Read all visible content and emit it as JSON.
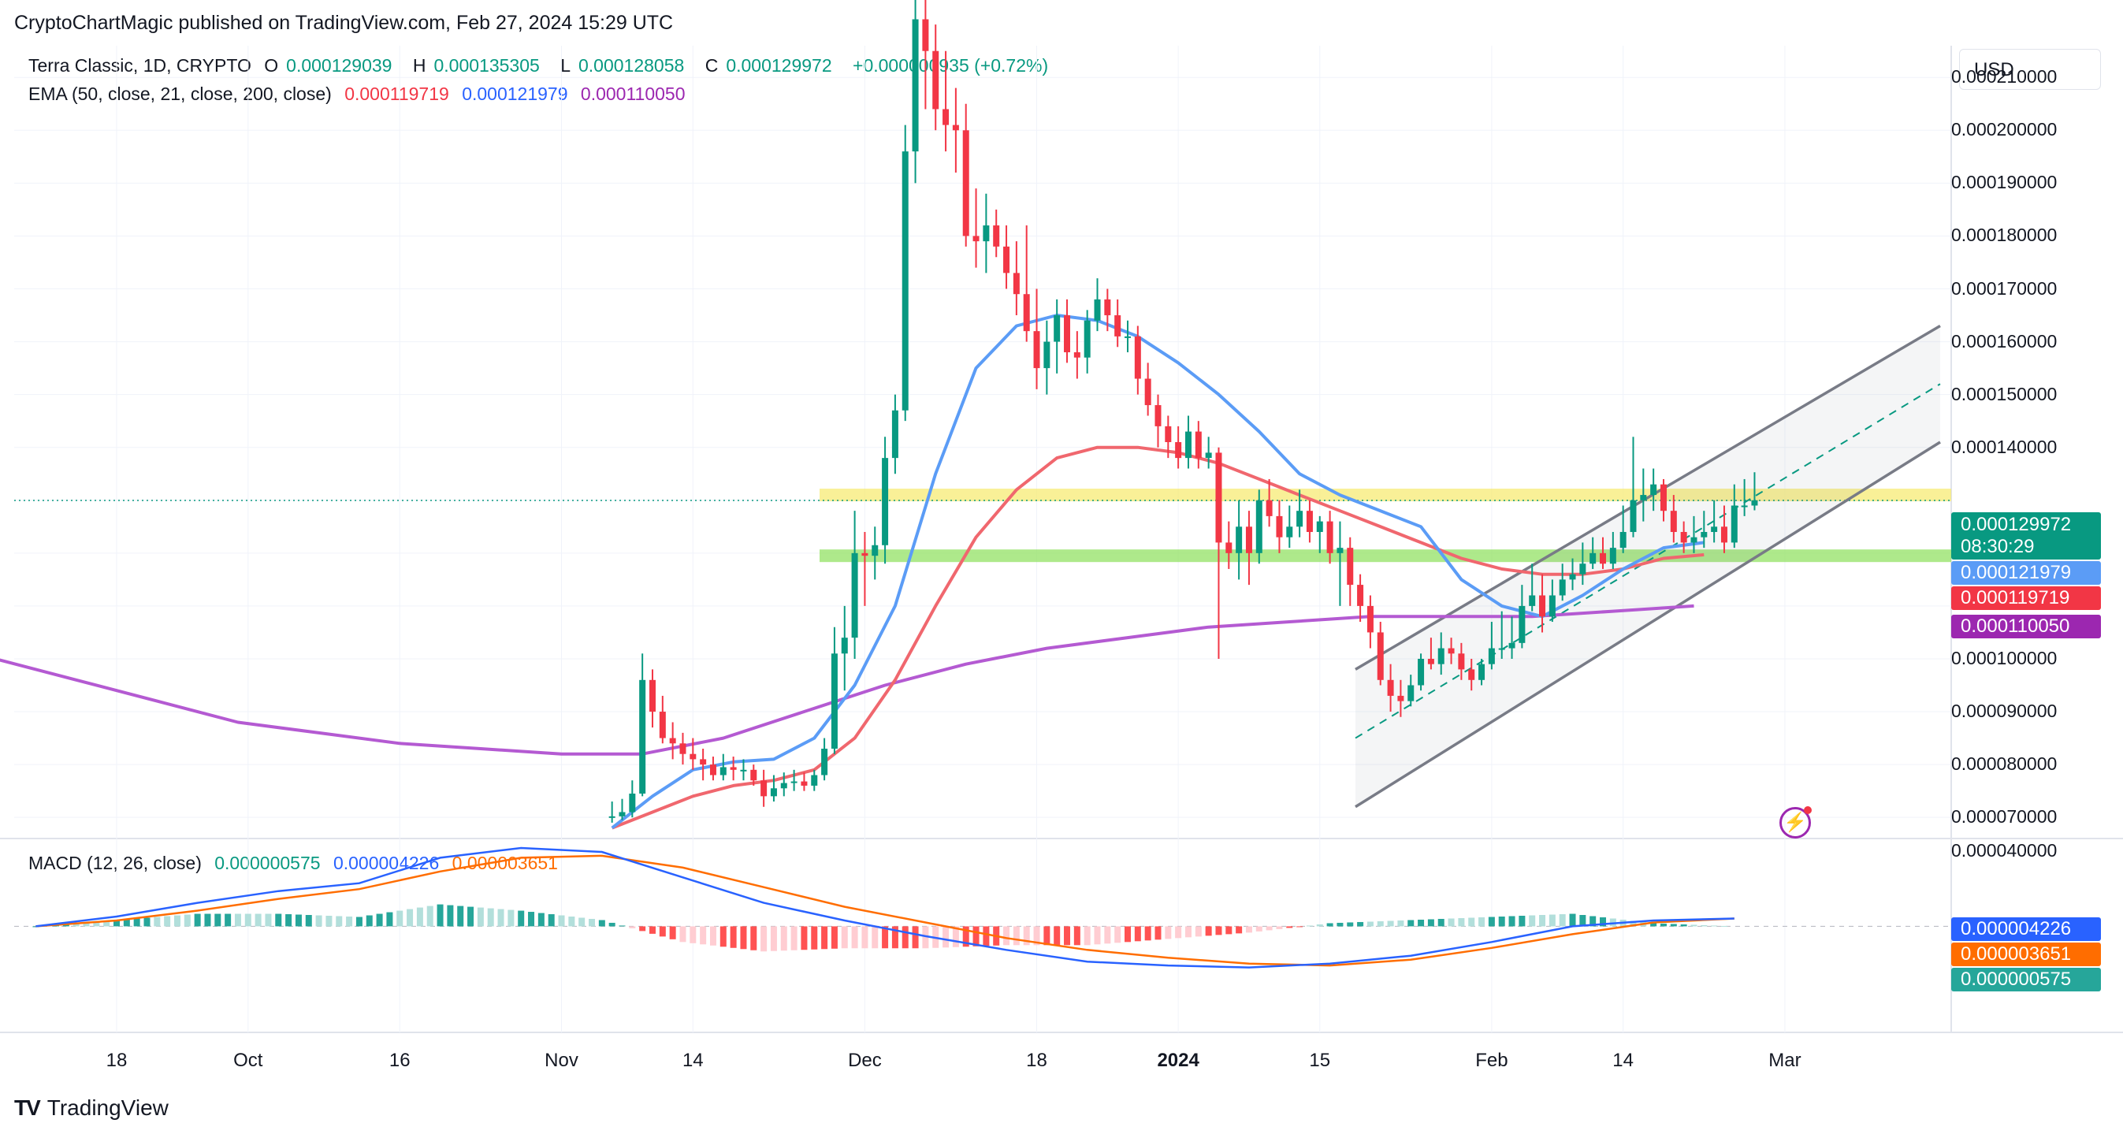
{
  "header": {
    "publisher": "CryptoChartMagic published on TradingView.com, Feb 27, 2024 15:29 UTC"
  },
  "legend": {
    "symbol": "Terra Classic, 1D, CRYPTO",
    "open_label": "O",
    "open": "0.000129039",
    "high_label": "H",
    "high": "0.000135305",
    "low_label": "L",
    "low": "0.000128058",
    "close_label": "C",
    "close": "0.000129972",
    "change": "+0.000000935 (+0.72%)",
    "ema_label": "EMA (50, close, 21, close, 200, close)",
    "ema50": "0.000119719",
    "ema21": "0.000121979",
    "ema200": "0.000110050",
    "macd_label": "MACD (12, 26, close)",
    "macd_hist": "0.000000575",
    "macd_line": "0.000004226",
    "macd_signal": "0.000003651"
  },
  "currency": "USD",
  "price_axis": [
    "0.000210000",
    "0.000200000",
    "0.000190000",
    "0.000180000",
    "0.000170000",
    "0.000160000",
    "0.000150000",
    "0.000140000",
    "0.000100000",
    "0.000090000",
    "0.000080000",
    "0.000070000"
  ],
  "macd_axis": [
    "0.000040000"
  ],
  "tags": {
    "last_price": "0.000129972",
    "countdown": "08:30:29",
    "ema21": "0.000121979",
    "ema50": "0.000119719",
    "ema200": "0.000110050",
    "macd_line": "0.000004226",
    "macd_signal": "0.000003651",
    "macd_hist": "0.000000575"
  },
  "colors": {
    "up": "#089981",
    "down": "#f23645",
    "ema21": "#5b9cf6",
    "ema50": "#f0676e",
    "ema200": "#b45ad2",
    "macd": "#2962ff",
    "signal": "#ff6d00"
  },
  "x_axis": [
    "18",
    "Oct",
    "16",
    "Nov",
    "14",
    "Dec",
    "18",
    "2024",
    "15",
    "Feb",
    "14",
    "Mar"
  ],
  "chart_data": {
    "type": "candlestick",
    "title": "Terra Classic, 1D, CRYPTO",
    "ylabel": "USD",
    "ylim": [
      6.6e-05,
      0.000216
    ],
    "x": [
      "2023-11-06",
      "2023-11-07",
      "2023-11-08",
      "2023-11-09",
      "2023-11-10",
      "2023-11-11",
      "2023-11-12",
      "2023-11-13",
      "2023-11-14",
      "2023-11-15",
      "2023-11-16",
      "2023-11-17",
      "2023-11-18",
      "2023-11-19",
      "2023-11-20",
      "2023-11-21",
      "2023-11-22",
      "2023-11-23",
      "2023-11-24",
      "2023-11-25",
      "2023-11-26",
      "2023-11-27",
      "2023-11-28",
      "2023-11-29",
      "2023-11-30",
      "2023-12-01",
      "2023-12-02",
      "2023-12-03",
      "2023-12-04",
      "2023-12-05",
      "2023-12-06",
      "2023-12-07",
      "2023-12-08",
      "2023-12-09",
      "2023-12-10",
      "2023-12-11",
      "2023-12-12",
      "2023-12-13",
      "2023-12-14",
      "2023-12-15",
      "2023-12-16",
      "2023-12-17",
      "2023-12-18",
      "2023-12-19",
      "2023-12-20",
      "2023-12-21",
      "2023-12-22",
      "2023-12-23",
      "2023-12-24",
      "2023-12-25",
      "2023-12-26",
      "2023-12-27",
      "2023-12-28",
      "2023-12-29",
      "2023-12-30",
      "2023-12-31",
      "2024-01-01",
      "2024-01-02",
      "2024-01-03",
      "2024-01-04",
      "2024-01-05",
      "2024-01-06",
      "2024-01-07",
      "2024-01-08",
      "2024-01-09",
      "2024-01-10",
      "2024-01-11",
      "2024-01-12",
      "2024-01-13",
      "2024-01-14",
      "2024-01-15",
      "2024-01-16",
      "2024-01-17",
      "2024-01-18",
      "2024-01-19",
      "2024-01-20",
      "2024-01-21",
      "2024-01-22",
      "2024-01-23",
      "2024-01-24",
      "2024-01-25",
      "2024-01-26",
      "2024-01-27",
      "2024-01-28",
      "2024-01-29",
      "2024-01-30",
      "2024-01-31",
      "2024-02-01",
      "2024-02-02",
      "2024-02-03",
      "2024-02-04",
      "2024-02-05",
      "2024-02-06",
      "2024-02-07",
      "2024-02-08",
      "2024-02-09",
      "2024-02-10",
      "2024-02-11",
      "2024-02-12",
      "2024-02-13",
      "2024-02-14",
      "2024-02-15",
      "2024-02-16",
      "2024-02-17",
      "2024-02-18",
      "2024-02-19",
      "2024-02-20",
      "2024-02-21",
      "2024-02-22",
      "2024-02-23",
      "2024-02-24",
      "2024-02-25",
      "2024-02-26",
      "2024-02-27"
    ],
    "open": [
      7e-05,
      7.02e-05,
      7.1e-05,
      7.45e-05,
      9.6e-05,
      9e-05,
      8.5e-05,
      8.4e-05,
      8.2e-05,
      8.1e-05,
      8e-05,
      7.8e-05,
      7.95e-05,
      7.9e-05,
      7.9e-05,
      7.7e-05,
      7.4e-05,
      7.55e-05,
      7.65e-05,
      7.68e-05,
      7.6e-05,
      7.8e-05,
      8.3e-05,
      0.000101,
      0.000104,
      0.00012,
      0.0001195,
      0.0001215,
      0.000138,
      0.000147,
      0.000196,
      0.000221,
      0.000215,
      0.000204,
      0.000201,
      0.0002,
      0.00018,
      0.000179,
      0.000182,
      0.000178,
      0.000173,
      0.000169,
      0.000162,
      0.000155,
      0.00016,
      0.000165,
      0.000158,
      0.000157,
      0.000164,
      0.000168,
      0.000165,
      0.000161,
      0.000161,
      0.000153,
      0.000148,
      0.000144,
      0.000141,
      0.000138,
      0.000143,
      0.000138,
      0.000139,
      0.000122,
      0.00012,
      0.000125,
      0.00012,
      0.00013,
      0.000127,
      0.000123,
      0.000125,
      0.000128,
      0.000124,
      0.000126,
      0.00012,
      0.000121,
      0.000114,
      0.00011,
      0.000105,
      9.6e-05,
      9.3e-05,
      9.2e-05,
      9.5e-05,
      0.0001,
      9.9e-05,
      0.000102,
      0.000101,
      9.8e-05,
      9.6e-05,
      9.9e-05,
      0.000102,
      0.000102,
      0.000103,
      0.00011,
      0.000112,
      0.000108,
      0.000112,
      0.000115,
      0.000116,
      0.000118,
      0.00012,
      0.000118,
      0.000121,
      0.000124,
      0.00013,
      0.000131,
      0.000133,
      0.000128,
      0.000124,
      0.000122,
      0.000123,
      0.000124,
      0.000125,
      0.000122,
      0.000129,
      0.000129
    ],
    "high": [
      7.3e-05,
      7.35e-05,
      7.7e-05,
      0.000101,
      9.8e-05,
      9.3e-05,
      8.8e-05,
      8.6e-05,
      8.5e-05,
      8.3e-05,
      8.15e-05,
      8.2e-05,
      8.15e-05,
      8.1e-05,
      8e-05,
      7.9e-05,
      7.8e-05,
      7.85e-05,
      7.9e-05,
      7.85e-05,
      7.9e-05,
      8.5e-05,
      0.000106,
      0.00011,
      0.000128,
      0.000124,
      0.000125,
      0.000142,
      0.00015,
      0.000201,
      0.000225,
      0.00023,
      0.00022,
      0.000215,
      0.000208,
      0.000205,
      0.000189,
      0.000188,
      0.000185,
      0.000182,
      0.000179,
      0.000182,
      0.00017,
      0.000164,
      0.000168,
      0.000168,
      0.000162,
      0.000166,
      0.000172,
      0.00017,
      0.000168,
      0.000164,
      0.000163,
      0.000156,
      0.00015,
      0.000146,
      0.000144,
      0.000146,
      0.000145,
      0.000142,
      0.00014,
      0.000126,
      0.00013,
      0.000128,
      0.000132,
      0.000134,
      0.00013,
      0.000129,
      0.000132,
      0.00013,
      0.000127,
      0.000128,
      0.000126,
      0.000123,
      0.000116,
      0.000112,
      0.000107,
      9.9e-05,
      9.6e-05,
      9.7e-05,
      0.000101,
      0.000104,
      0.000105,
      0.000104,
      0.000103,
      0.0001,
      0.0001,
      0.000107,
      0.000109,
      0.000108,
      0.000114,
      0.000118,
      0.000116,
      0.000115,
      0.000118,
      0.000119,
      0.000122,
      0.000123,
      0.000123,
      0.000124,
      0.000129,
      0.000142,
      0.000136,
      0.000136,
      0.000134,
      0.000131,
      0.000126,
      0.000127,
      0.000128,
      0.00013,
      0.000129,
      0.000133,
      0.000134,
      0.0001353
    ],
    "low": [
      6.9e-05,
      6.95e-05,
      7e-05,
      7.4e-05,
      8.7e-05,
      8.4e-05,
      8.1e-05,
      8e-05,
      7.9e-05,
      7.7e-05,
      7.7e-05,
      7.7e-05,
      7.7e-05,
      7.7e-05,
      7.6e-05,
      7.2e-05,
      7.3e-05,
      7.4e-05,
      7.5e-05,
      7.5e-05,
      7.5e-05,
      7.7e-05,
      8.2e-05,
      9.4e-05,
      0.0001,
      0.00011,
      0.000115,
      0.000118,
      0.000135,
      0.000145,
      0.00019,
      0.000204,
      0.0002,
      0.000196,
      0.000192,
      0.000178,
      0.000174,
      0.000173,
      0.000176,
      0.00017,
      0.000165,
      0.00016,
      0.000151,
      0.00015,
      0.000154,
      0.000156,
      0.000153,
      0.000154,
      0.000162,
      0.000162,
      0.000159,
      0.000158,
      0.00015,
      0.000146,
      0.00014,
      0.000138,
      0.000136,
      0.000136,
      0.000136,
      0.000136,
      0.0001,
      0.000117,
      0.000115,
      0.000114,
      0.000118,
      0.000125,
      0.00012,
      0.000121,
      0.000123,
      0.000122,
      0.00012,
      0.000118,
      0.00011,
      0.00011,
      0.000107,
      0.000102,
      9.5e-05,
      9e-05,
      8.9e-05,
      9.1e-05,
      9.4e-05,
      9.8e-05,
      9.7e-05,
      9.9e-05,
      9.6e-05,
      9.4e-05,
      9.5e-05,
      9.8e-05,
      0.0001,
      0.0001,
      0.000102,
      0.000109,
      0.000105,
      0.000107,
      0.000111,
      0.000113,
      0.000114,
      0.000117,
      0.000117,
      0.000117,
      0.00012,
      0.000123,
      0.000126,
      0.000128,
      0.000126,
      0.000122,
      0.00012,
      0.00012,
      0.000121,
      0.000122,
      0.00012,
      0.000121,
      0.000127,
      0.0001281
    ],
    "close": [
      7.02e-05,
      7.1e-05,
      7.45e-05,
      9.6e-05,
      9e-05,
      8.5e-05,
      8.4e-05,
      8.2e-05,
      8.1e-05,
      8e-05,
      7.8e-05,
      7.95e-05,
      7.9e-05,
      7.9e-05,
      7.7e-05,
      7.4e-05,
      7.55e-05,
      7.65e-05,
      7.68e-05,
      7.6e-05,
      7.8e-05,
      8.3e-05,
      0.000101,
      0.000104,
      0.00012,
      0.0001195,
      0.0001215,
      0.000138,
      0.000147,
      0.000196,
      0.000221,
      0.000215,
      0.000204,
      0.000201,
      0.0002,
      0.00018,
      0.000179,
      0.000182,
      0.000178,
      0.000173,
      0.000169,
      0.000162,
      0.000155,
      0.00016,
      0.000165,
      0.000158,
      0.000157,
      0.000164,
      0.000168,
      0.000165,
      0.000161,
      0.000161,
      0.000153,
      0.000148,
      0.000144,
      0.000141,
      0.000138,
      0.000143,
      0.000138,
      0.000139,
      0.000122,
      0.00012,
      0.000125,
      0.00012,
      0.00013,
      0.000127,
      0.000123,
      0.000125,
      0.000128,
      0.000124,
      0.000126,
      0.00012,
      0.000121,
      0.000114,
      0.00011,
      0.000105,
      9.6e-05,
      9.3e-05,
      9.2e-05,
      9.5e-05,
      0.0001,
      9.9e-05,
      0.000102,
      0.000101,
      9.8e-05,
      9.6e-05,
      9.9e-05,
      0.000102,
      0.000102,
      0.000103,
      0.00011,
      0.000112,
      0.000108,
      0.000112,
      0.000115,
      0.000116,
      0.000118,
      0.00012,
      0.000118,
      0.000121,
      0.000124,
      0.00013,
      0.000131,
      0.000133,
      0.000128,
      0.000124,
      0.000122,
      0.000123,
      0.000124,
      0.000125,
      0.000122,
      0.000129,
      0.000129,
      0.00013
    ],
    "ema_series": [
      {
        "name": "EMA 21",
        "start": "2023-11-06",
        "values": [
          6.8e-05,
          7.4e-05,
          7.9e-05,
          8.05e-05,
          8.1e-05,
          8.5e-05,
          9.5e-05,
          0.00011,
          0.000135,
          0.000155,
          0.000163,
          0.000165,
          0.000164,
          0.000161,
          0.000156,
          0.00015,
          0.000143,
          0.000135,
          0.000131,
          0.000128,
          0.000125,
          0.000115,
          0.00011,
          0.000108,
          0.000112,
          0.000117,
          0.000121,
          0.000122
        ]
      },
      {
        "name": "EMA 50",
        "start": "2023-11-06",
        "values": [
          6.8e-05,
          7.1e-05,
          7.4e-05,
          7.6e-05,
          7.7e-05,
          7.9e-05,
          8.5e-05,
          9.6e-05,
          0.00011,
          0.000123,
          0.000132,
          0.000138,
          0.00014,
          0.00014,
          0.000139,
          0.000137,
          0.000134,
          0.000131,
          0.000128,
          0.000125,
          0.000122,
          0.000119,
          0.000117,
          0.000116,
          0.000116,
          0.000117,
          0.000119,
          0.0001197
        ]
      },
      {
        "name": "EMA 200",
        "start": "2023-09-06",
        "values": [
          0.0001,
          9.6e-05,
          9.2e-05,
          8.8e-05,
          8.6e-05,
          8.4e-05,
          8.3e-05,
          8.2e-05,
          8.2e-05,
          8.5e-05,
          9e-05,
          9.5e-05,
          9.9e-05,
          0.000102,
          0.000104,
          0.000106,
          0.000107,
          0.000108,
          0.000108,
          0.000108,
          0.000109,
          0.00011
        ]
      }
    ],
    "macd": {
      "ylim": [
        -3e-06,
        4e-06
      ],
      "line": [
        0.0,
        5e-07,
        1.2e-06,
        1.8e-06,
        2.2e-06,
        3.5e-06,
        4e-06,
        3.8e-06,
        2.5e-06,
        1.2e-06,
        3e-07,
        -5e-07,
        -1.2e-06,
        -1.8e-06,
        -2e-06,
        -2.1e-06,
        -1.9e-06,
        -1.5e-06,
        -8e-07,
        0.0,
        3e-07,
        4e-07
      ],
      "signal": [
        0.0,
        3e-07,
        8e-07,
        1.4e-06,
        1.9e-06,
        2.8e-06,
        3.5e-06,
        3.6e-06,
        3e-06,
        2e-06,
        1e-06,
        2e-07,
        -6e-07,
        -1.2e-06,
        -1.6e-06,
        -1.9e-06,
        -2e-06,
        -1.7e-06,
        -1.1e-06,
        -4e-07,
        2e-07,
        4e-07
      ]
    },
    "levels": [
      {
        "name": "resistance",
        "value": 0.000131,
        "color": "#f7e96b"
      },
      {
        "name": "support",
        "value": 0.0001195,
        "color": "#8ce05a"
      }
    ]
  }
}
